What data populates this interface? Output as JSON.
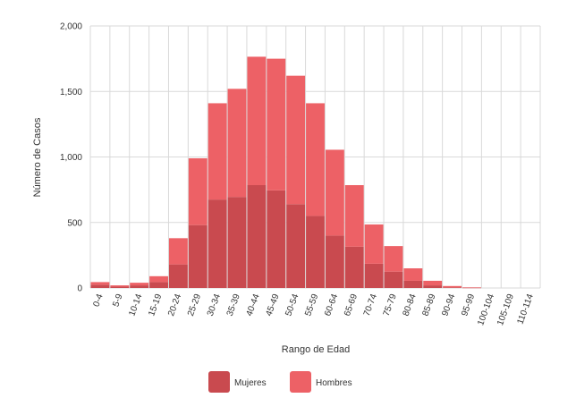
{
  "chart_data": {
    "type": "bar",
    "stacked": true,
    "categories": [
      "0-4",
      "5-9",
      "10-14",
      "15-19",
      "20-24",
      "25-29",
      "30-34",
      "35-39",
      "40-44",
      "45-49",
      "50-54",
      "55-59",
      "60-64",
      "65-69",
      "70-74",
      "75-79",
      "80-84",
      "85-89",
      "90-94",
      "95-99",
      "100-104",
      "105-109",
      "110-114"
    ],
    "series": [
      {
        "name": "Mujeres",
        "color": "#c94a4f",
        "values": [
          25,
          10,
          20,
          45,
          180,
          480,
          675,
          695,
          785,
          745,
          640,
          550,
          400,
          315,
          185,
          125,
          55,
          20,
          5,
          2,
          0,
          0,
          0
        ]
      },
      {
        "name": "Hombres",
        "color": "#ed6166",
        "values": [
          20,
          10,
          20,
          45,
          200,
          510,
          735,
          825,
          980,
          1005,
          980,
          860,
          655,
          470,
          300,
          195,
          95,
          35,
          10,
          3,
          0,
          0,
          0
        ]
      }
    ],
    "totals": [
      45,
      20,
      40,
      90,
      380,
      990,
      1410,
      1520,
      1765,
      1750,
      1620,
      1410,
      1055,
      785,
      485,
      320,
      150,
      55,
      15,
      5,
      0,
      0,
      0
    ],
    "xlabel": "Rango de Edad",
    "ylabel": "Número de Casos",
    "ylim": [
      0,
      2000
    ],
    "yticks": [
      0,
      500,
      1000,
      1500,
      2000
    ],
    "ytick_labels": [
      "0",
      "500",
      "1,000",
      "1,500",
      "2,000"
    ],
    "grid": true,
    "legend_position": "bottom-center"
  }
}
